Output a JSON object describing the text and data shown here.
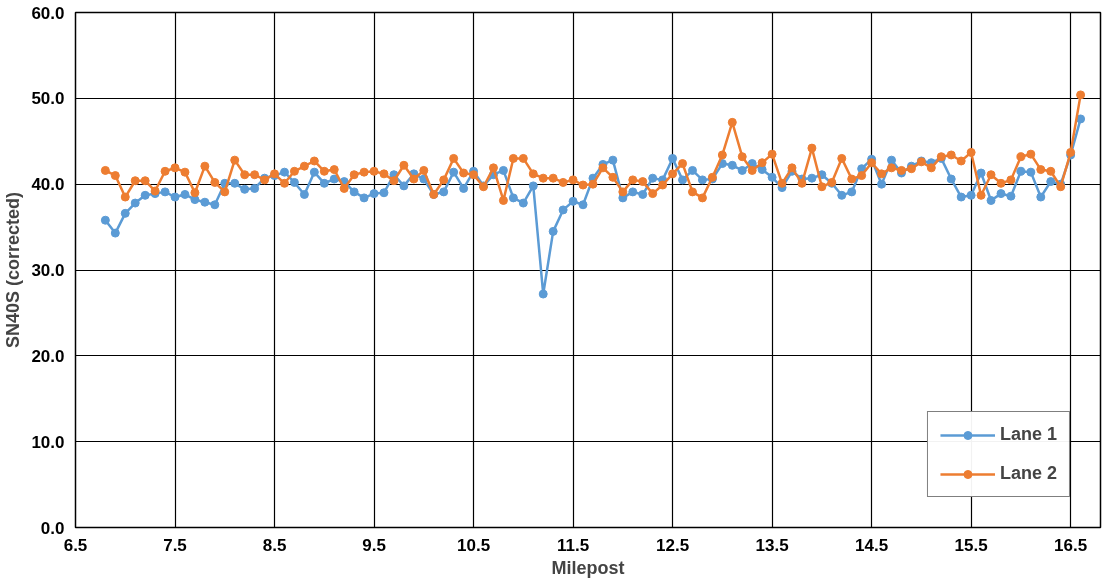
{
  "chart_data": {
    "type": "line",
    "xlabel": "Milepost",
    "ylabel": "SN40S (corrected)",
    "x": [
      6.8,
      6.9,
      7.0,
      7.1,
      7.2,
      7.3,
      7.4,
      7.5,
      7.6,
      7.7,
      7.8,
      7.9,
      8.0,
      8.1,
      8.2,
      8.3,
      8.4,
      8.5,
      8.6,
      8.7,
      8.8,
      8.9,
      9.0,
      9.1,
      9.2,
      9.3,
      9.4,
      9.5,
      9.6,
      9.7,
      9.8,
      9.9,
      10.0,
      10.1,
      10.2,
      10.3,
      10.4,
      10.5,
      10.6,
      10.7,
      10.8,
      10.9,
      11.0,
      11.1,
      11.2,
      11.3,
      11.4,
      11.5,
      11.6,
      11.7,
      11.8,
      11.9,
      12.0,
      12.1,
      12.2,
      12.3,
      12.4,
      12.5,
      12.6,
      12.7,
      12.8,
      12.9,
      13.0,
      13.1,
      13.2,
      13.3,
      13.4,
      13.5,
      13.6,
      13.7,
      13.8,
      13.9,
      14.0,
      14.1,
      14.2,
      14.3,
      14.4,
      14.5,
      14.6,
      14.7,
      14.8,
      14.9,
      15.0,
      15.1,
      15.2,
      15.3,
      15.4,
      15.5,
      15.6,
      15.7,
      15.8,
      15.9,
      16.0,
      16.1,
      16.2,
      16.3,
      16.4,
      16.5,
      16.6
    ],
    "series": [
      {
        "name": "Lane 1",
        "color": "#5b9bd5",
        "values": [
          35.8,
          34.3,
          36.6,
          37.8,
          38.7,
          38.9,
          39.1,
          38.5,
          38.8,
          38.2,
          37.9,
          37.6,
          40.1,
          40.1,
          39.4,
          39.5,
          40.7,
          41.0,
          41.4,
          40.2,
          38.8,
          41.4,
          40.1,
          40.6,
          40.3,
          39.1,
          38.4,
          38.9,
          39.0,
          41.1,
          39.8,
          41.2,
          40.6,
          38.8,
          39.1,
          41.4,
          39.5,
          41.5,
          39.8,
          41.1,
          41.6,
          38.4,
          37.8,
          39.8,
          27.2,
          34.5,
          37.0,
          38.0,
          37.6,
          40.7,
          42.3,
          42.8,
          38.4,
          39.1,
          38.8,
          40.7,
          40.5,
          43.0,
          40.5,
          41.6,
          40.5,
          40.6,
          42.4,
          42.2,
          41.6,
          42.4,
          41.7,
          40.8,
          39.6,
          41.5,
          40.6,
          40.7,
          41.1,
          40.1,
          38.7,
          39.1,
          41.8,
          42.9,
          40.0,
          42.8,
          41.3,
          42.1,
          42.7,
          42.5,
          43.0,
          40.6,
          38.5,
          38.7,
          41.3,
          38.1,
          38.9,
          38.6,
          41.5,
          41.4,
          38.5,
          40.3,
          40.0,
          43.4,
          47.6
        ]
      },
      {
        "name": "Lane 2",
        "color": "#ed7d31",
        "values": [
          41.6,
          41.0,
          38.5,
          40.4,
          40.4,
          39.2,
          41.5,
          41.9,
          41.4,
          39.0,
          42.1,
          40.2,
          39.1,
          42.8,
          41.1,
          41.1,
          40.5,
          41.2,
          40.1,
          41.5,
          42.1,
          42.7,
          41.5,
          41.7,
          39.5,
          41.1,
          41.4,
          41.5,
          41.2,
          40.4,
          42.2,
          40.6,
          41.6,
          38.8,
          40.5,
          43.0,
          41.3,
          41.1,
          39.7,
          41.9,
          38.1,
          43.0,
          43.0,
          41.2,
          40.7,
          40.7,
          40.2,
          40.5,
          39.9,
          40.0,
          41.9,
          40.8,
          39.1,
          40.5,
          40.3,
          38.9,
          39.9,
          41.2,
          42.4,
          39.1,
          38.4,
          40.8,
          43.4,
          47.2,
          43.2,
          41.6,
          42.5,
          43.5,
          40.1,
          41.9,
          40.1,
          44.2,
          39.7,
          40.2,
          43.0,
          40.6,
          41.0,
          42.5,
          41.2,
          41.9,
          41.6,
          41.8,
          42.6,
          41.9,
          43.2,
          43.4,
          42.7,
          43.7,
          38.7,
          41.1,
          40.1,
          40.5,
          43.2,
          43.5,
          41.7,
          41.5,
          39.7,
          43.7,
          50.4
        ]
      }
    ],
    "xlim": [
      6.5,
      16.8
    ],
    "ylim": [
      0,
      60
    ],
    "xticks": [
      6.5,
      7.5,
      8.5,
      9.5,
      10.5,
      11.5,
      12.5,
      13.5,
      14.5,
      15.5,
      16.5
    ],
    "yticks": [
      {
        "value": 0,
        "label": "0.0"
      },
      {
        "value": 10,
        "label": "10.0"
      },
      {
        "value": 20,
        "label": "20.0"
      },
      {
        "value": 30,
        "label": "30.0"
      },
      {
        "value": 40,
        "label": "40.0"
      },
      {
        "value": 50,
        "label": "50.0"
      },
      {
        "value": 60,
        "label": "60.0"
      }
    ],
    "grid": true,
    "legend": "bottom right",
    "marker": "circle",
    "line_style": "solid"
  }
}
